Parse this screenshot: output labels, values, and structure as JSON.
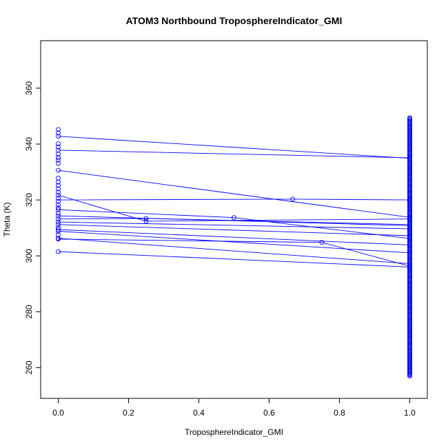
{
  "chart_data": {
    "type": "scatter",
    "title": "ATOM3 Northbound TroposphereIndicator_GMI",
    "xlabel": "TroposphereIndicator_GMI",
    "ylabel": "Theta (K)",
    "xlim": [
      -0.05,
      1.05
    ],
    "ylim": [
      249,
      377
    ],
    "xticks": [
      0.0,
      0.2,
      0.4,
      0.6,
      0.8,
      1.0
    ],
    "xtick_labels": [
      "0.0",
      "0.2",
      "0.4",
      "0.6",
      "0.8",
      "1.0"
    ],
    "yticks": [
      260,
      280,
      300,
      320,
      340,
      360
    ],
    "ytick_labels": [
      "260",
      "280",
      "300",
      "320",
      "340",
      "360"
    ],
    "grid": false,
    "legend": "none",
    "color": "#0000ff",
    "lines": [
      {
        "x": [
          0,
          1
        ],
        "y": [
          342.8,
          334.9
        ]
      },
      {
        "x": [
          0,
          1
        ],
        "y": [
          337.8,
          335.1
        ]
      },
      {
        "x": [
          0,
          1
        ],
        "y": [
          330.6,
          313.8
        ]
      },
      {
        "x": [
          0,
          0.667,
          1
        ],
        "y": [
          320.0,
          320.3,
          320.0
        ]
      },
      {
        "x": [
          0,
          0.25,
          1
        ],
        "y": [
          321.7,
          312.4,
          313.2
        ]
      },
      {
        "x": [
          0,
          0.5,
          1
        ],
        "y": [
          316.5,
          313.7,
          306.2
        ]
      },
      {
        "x": [
          0,
          1
        ],
        "y": [
          314.3,
          310.8
        ]
      },
      {
        "x": [
          0,
          0.25,
          1
        ],
        "y": [
          313.2,
          313.4,
          311.2
        ]
      },
      {
        "x": [
          0,
          1
        ],
        "y": [
          312.1,
          309.7
        ]
      },
      {
        "x": [
          0,
          1
        ],
        "y": [
          311.2,
          307.2
        ]
      },
      {
        "x": [
          0,
          1
        ],
        "y": [
          309.4,
          303.9
        ]
      },
      {
        "x": [
          0,
          1
        ],
        "y": [
          308.8,
          301.1
        ]
      },
      {
        "x": [
          0,
          0.75,
          1
        ],
        "y": [
          306.0,
          304.8,
          296.3
        ]
      },
      {
        "x": [
          0,
          1
        ],
        "y": [
          306.3,
          297.2
        ]
      },
      {
        "x": [
          0,
          1
        ],
        "y": [
          301.5,
          296.0
        ]
      }
    ],
    "mid_points": [
      {
        "x": 0.25,
        "y": 313.4
      },
      {
        "x": 0.25,
        "y": 312.4
      },
      {
        "x": 0.5,
        "y": 313.7
      },
      {
        "x": 0.667,
        "y": 320.3
      },
      {
        "x": 0.75,
        "y": 304.8
      }
    ],
    "x0_points_y": [
      345.2,
      344.0,
      342.8,
      340.1,
      339.0,
      337.8,
      336.4,
      335.2,
      334.3,
      333.1,
      330.6,
      327.8,
      326.4,
      325.2,
      324.0,
      322.8,
      321.7,
      320.6,
      319.5,
      318.3,
      317.2,
      316.5,
      315.3,
      314.3,
      313.2,
      312.1,
      311.2,
      310.1,
      309.4,
      308.8,
      307.6,
      306.3,
      306.0,
      301.5
    ],
    "x1_range": [
      257,
      349.5
    ],
    "x1_extra_points_y": [
      320.0,
      313.8,
      313.2
    ]
  }
}
